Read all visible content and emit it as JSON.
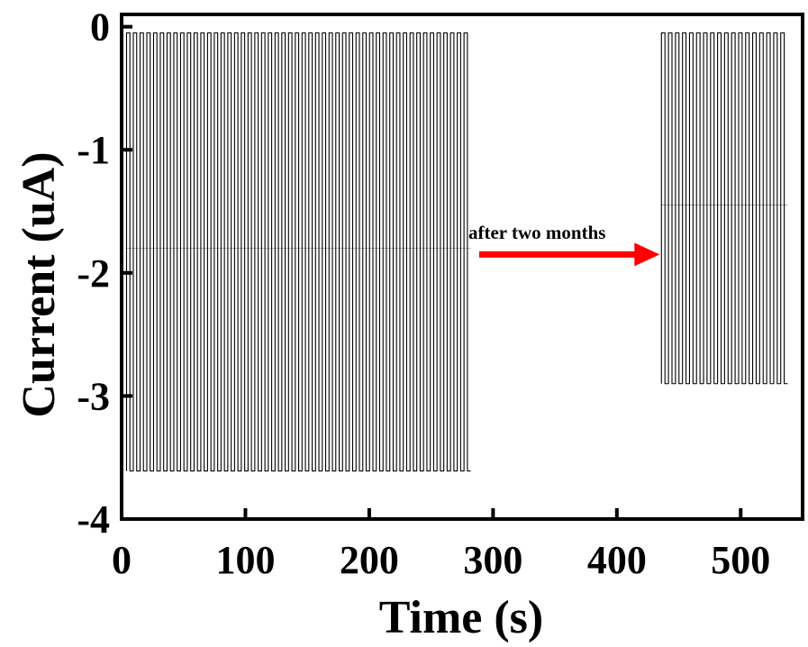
{
  "chart_data": {
    "type": "line",
    "title": "",
    "xlabel": "Time (s)",
    "ylabel": "Current (uA)",
    "xlim": [
      0,
      550
    ],
    "ylim": [
      -4,
      0.1
    ],
    "x_ticks": [
      0,
      100,
      200,
      300,
      400,
      500
    ],
    "y_ticks": [
      0,
      -1,
      -2,
      -3,
      -4
    ],
    "x_tick_labels": [
      "0",
      "100",
      "200",
      "300",
      "400",
      "500"
    ],
    "y_tick_labels": [
      "0",
      "-1",
      "-2",
      "-3",
      "-4"
    ],
    "grid": false,
    "line_color": "#000000",
    "series": [
      {
        "segment": "initial",
        "start": 4,
        "end": 282,
        "cycles": 51,
        "on_current": -3.61,
        "off_current": -0.05,
        "mid_level": -1.8
      },
      {
        "segment": "after",
        "start": 436,
        "end": 538,
        "cycles": 18,
        "on_current": -2.9,
        "off_current": -0.05,
        "mid_level": -1.45
      }
    ],
    "annotation": {
      "text": "after two months",
      "arrow_from_x": 283,
      "arrow_to_x": 436,
      "arrow_y": -1.85,
      "arrow_color": "#ff0000"
    }
  }
}
